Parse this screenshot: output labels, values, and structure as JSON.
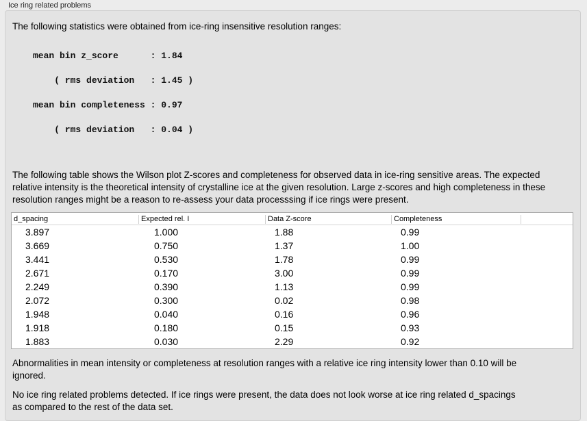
{
  "title": "Ice ring related problems",
  "intro": "The following statistics were obtained from ice-ring insensitive resolution ranges:",
  "stats": [
    "mean bin z_score      : 1.84",
    "    ( rms deviation   : 1.45 )",
    "mean bin completeness : 0.97",
    "    ( rms deviation   : 0.04 )"
  ],
  "table_intro": "The following table shows the Wilson plot Z-scores and completeness for observed data in ice-ring sensitive areas. The expected relative intensity is the theoretical intensity of crystalline ice at the given resolution. Large z-scores and high completeness in these resolution ranges might be a reason to re-assess your data processsing if ice rings were present.",
  "table": {
    "columns": [
      "d_spacing",
      "Expected rel. I",
      "Data Z-score",
      "Completeness"
    ],
    "rows": [
      [
        "3.897",
        "1.000",
        "1.88",
        "0.99"
      ],
      [
        "3.669",
        "0.750",
        "1.37",
        "1.00"
      ],
      [
        "3.441",
        "0.530",
        "1.78",
        "0.99"
      ],
      [
        "2.671",
        "0.170",
        "3.00",
        "0.99"
      ],
      [
        "2.249",
        "0.390",
        "1.13",
        "0.99"
      ],
      [
        "2.072",
        "0.300",
        "0.02",
        "0.98"
      ],
      [
        "1.948",
        "0.040",
        "0.16",
        "0.96"
      ],
      [
        "1.918",
        "0.180",
        "0.15",
        "0.93"
      ],
      [
        "1.883",
        "0.030",
        "2.29",
        "0.92"
      ]
    ]
  },
  "note": "Abnormalities in mean intensity or completeness at resolution ranges with a relative ice ring intensity lower than 0.10 will be ignored.",
  "conclusion": "No ice ring related problems detected. If ice rings were present, the data does not look worse at ice ring related d_spacings as compared to the rest of the data set."
}
